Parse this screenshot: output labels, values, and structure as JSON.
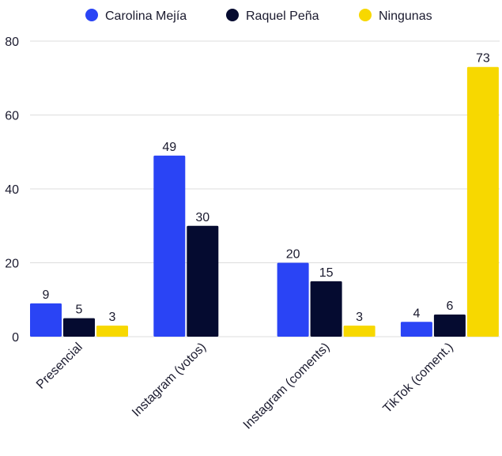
{
  "chart_data": {
    "type": "bar",
    "categories": [
      "Presencial",
      "Instagram (votos)",
      "Instagram (coments)",
      "TikTok (coment.)"
    ],
    "series": [
      {
        "name": "Carolina Mejía",
        "color": "#2a44f5",
        "values": [
          9,
          49,
          20,
          4
        ]
      },
      {
        "name": "Raquel Peña",
        "color": "#050b30",
        "values": [
          5,
          30,
          15,
          6
        ]
      },
      {
        "name": "Ningunas",
        "color": "#f7d800",
        "values": [
          3,
          null,
          3,
          73
        ]
      }
    ],
    "ylim": [
      0,
      80
    ],
    "yticks": [
      0,
      20,
      40,
      60,
      80
    ],
    "grid": true,
    "legend": "top"
  }
}
